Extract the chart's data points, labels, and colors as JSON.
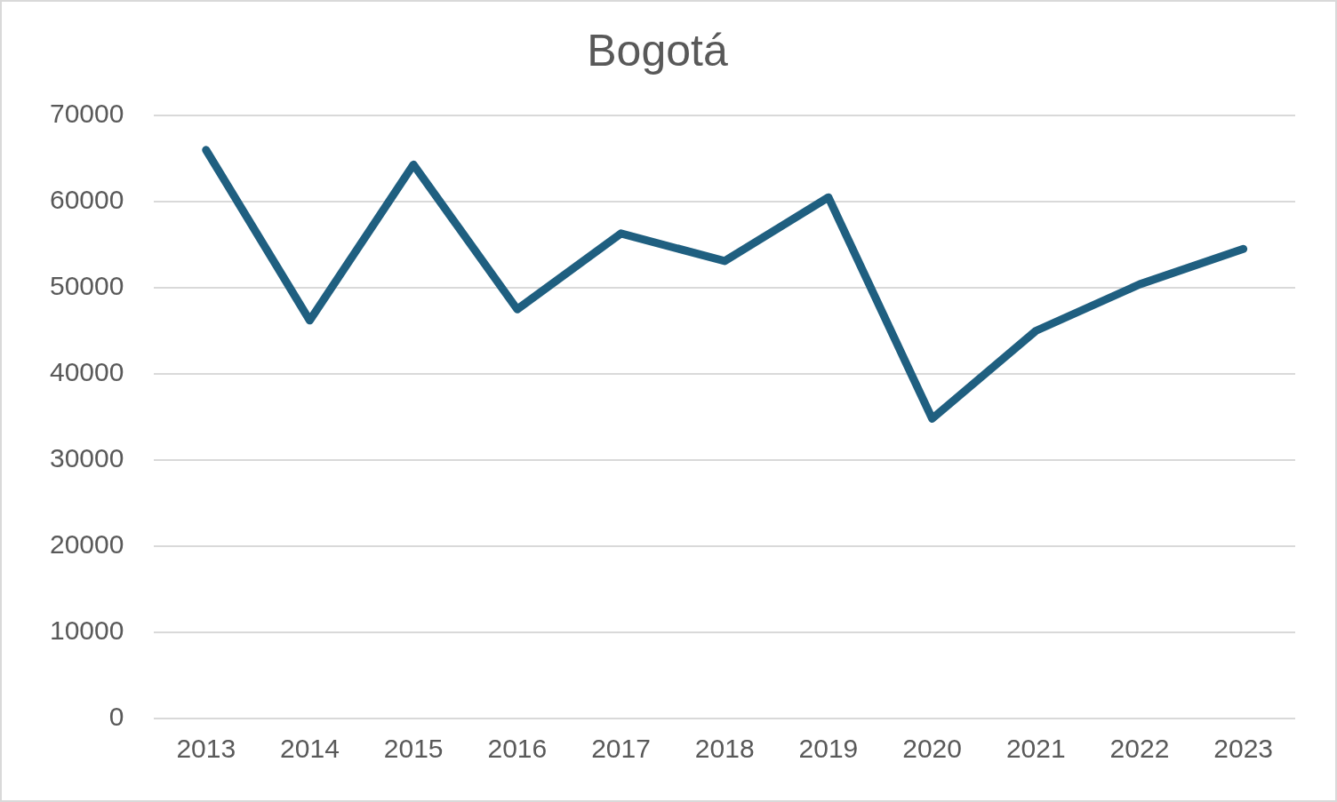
{
  "chart_data": {
    "type": "line",
    "title": "Bogotá",
    "categories": [
      "2013",
      "2014",
      "2015",
      "2016",
      "2017",
      "2018",
      "2019",
      "2020",
      "2021",
      "2022",
      "2023"
    ],
    "series": [
      {
        "color": "#1f5f80",
        "values": [
          66000,
          46200,
          64300,
          47500,
          56300,
          53100,
          60500,
          34800,
          45000,
          50400,
          54500
        ]
      }
    ],
    "ylim": [
      0,
      70000
    ],
    "yticks": [
      0,
      10000,
      20000,
      30000,
      40000,
      50000,
      60000,
      70000
    ],
    "grid": "y",
    "legend": false,
    "marker": "none",
    "line_style": "solid"
  }
}
